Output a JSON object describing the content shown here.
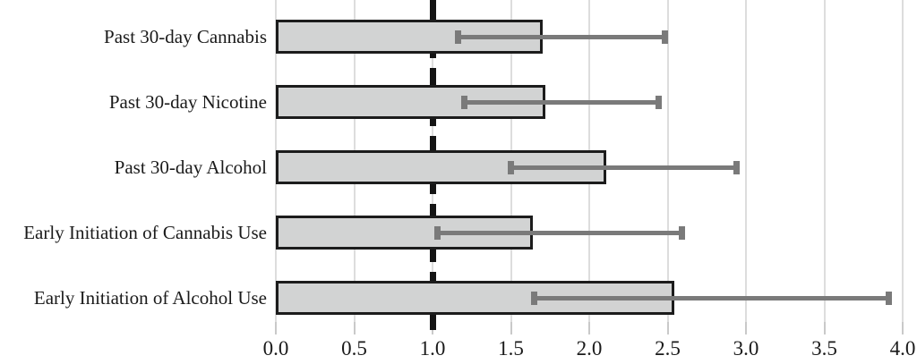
{
  "chart_data": {
    "type": "bar",
    "orientation": "horizontal",
    "title": "",
    "xlabel": "",
    "ylabel": "",
    "categories": [
      "Past 30-day Cannabis",
      "Past 30-day Nicotine",
      "Past 30-day Alcohol",
      "Early Initiation of Cannabis Use",
      "Early Initiation of Alcohol Use"
    ],
    "values": [
      1.7,
      1.72,
      2.11,
      1.64,
      2.54
    ],
    "ci_low": [
      1.16,
      1.2,
      1.5,
      1.03,
      1.65
    ],
    "ci_high": [
      2.48,
      2.44,
      2.94,
      2.59,
      3.91
    ],
    "reference_line": 1.0,
    "xlim": [
      0.0,
      4.0
    ],
    "x_tick_values": [
      0.0,
      0.5,
      1.0,
      1.5,
      2.0,
      2.5,
      3.0,
      3.5,
      4.0
    ],
    "x_tick_labels": [
      "0.0",
      "0.5",
      "1.0",
      "1.5",
      "2.0",
      "2.5",
      "3.0",
      "3.5",
      "4.0"
    ],
    "grid": true,
    "legend": false,
    "colors": {
      "bar_fill": "#d2d3d3",
      "bar_border": "#1c1c1c",
      "error_bar": "#7a7a7a",
      "gridline": "#dddddd",
      "reference_line": "#141414",
      "text": "#1a1a1a",
      "background": "#ffffff"
    }
  }
}
